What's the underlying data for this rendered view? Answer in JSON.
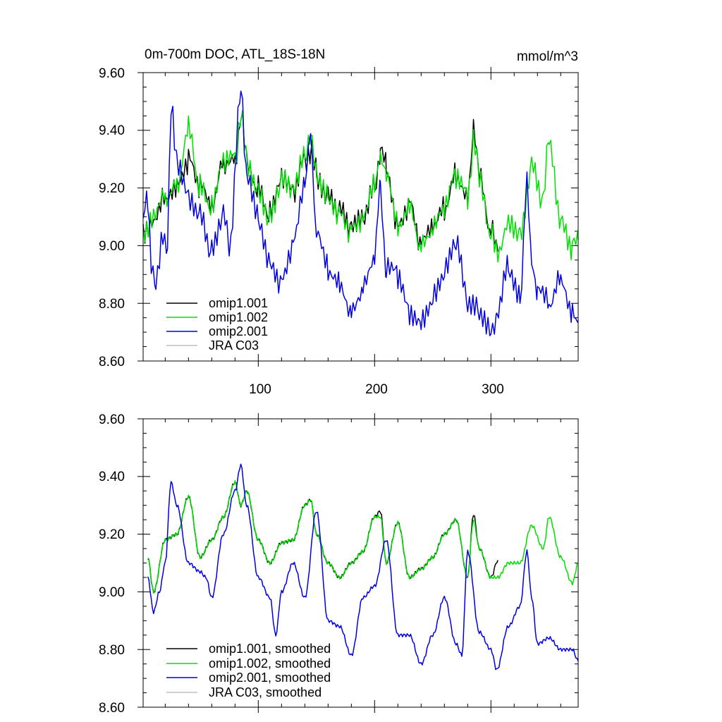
{
  "colors": {
    "omip1_001": "#000000",
    "omip1_002": "#00e000",
    "omip2_001": "#0000e0",
    "jra_c03": "#c0c0c0"
  },
  "chart_data": [
    {
      "type": "line",
      "title": "0m-700m DOC, ATL_18S-18N",
      "units": "mmol/m^3",
      "xlim": [
        1,
        375
      ],
      "ylim": [
        8.6,
        9.6
      ],
      "xticks": [
        100,
        200,
        300
      ],
      "yticks": [
        "8.60",
        "8.80",
        "9.00",
        "9.20",
        "9.40",
        "9.60"
      ],
      "legend_position": "bottom-left",
      "series": [
        {
          "name": "omip1.001",
          "color": "#000000",
          "x": [
            1,
            10,
            20,
            30,
            40,
            50,
            60,
            70,
            80,
            85,
            90,
            100,
            110,
            120,
            130,
            140,
            145,
            150,
            160,
            170,
            180,
            190,
            200,
            205,
            210,
            220,
            230,
            240,
            250,
            260,
            270,
            280,
            285,
            290,
            300,
            306
          ],
          "y": [
            9.06,
            9.1,
            9.18,
            9.22,
            9.3,
            9.2,
            9.12,
            9.28,
            9.3,
            9.45,
            9.3,
            9.2,
            9.1,
            9.22,
            9.18,
            9.3,
            9.33,
            9.25,
            9.18,
            9.12,
            9.05,
            9.08,
            9.2,
            9.32,
            9.28,
            9.08,
            9.15,
            9.0,
            9.05,
            9.12,
            9.25,
            9.18,
            9.4,
            9.25,
            9.05,
            8.98
          ]
        },
        {
          "name": "omip1.002",
          "color": "#00e000",
          "x": [
            1,
            10,
            20,
            30,
            40,
            50,
            60,
            70,
            80,
            85,
            90,
            100,
            110,
            120,
            130,
            140,
            145,
            150,
            160,
            170,
            180,
            190,
            200,
            205,
            210,
            220,
            230,
            240,
            250,
            260,
            270,
            280,
            285,
            290,
            300,
            306,
            315,
            325,
            335,
            345,
            350,
            360,
            370,
            375
          ],
          "y": [
            9.05,
            9.1,
            9.17,
            9.22,
            9.42,
            9.2,
            9.12,
            9.28,
            9.3,
            9.45,
            9.3,
            9.2,
            9.1,
            9.22,
            9.18,
            9.3,
            9.38,
            9.25,
            9.18,
            9.12,
            9.05,
            9.08,
            9.2,
            9.3,
            9.26,
            9.08,
            9.15,
            9.0,
            9.05,
            9.12,
            9.24,
            9.18,
            9.35,
            9.25,
            9.05,
            8.98,
            9.1,
            9.05,
            9.28,
            9.15,
            9.38,
            9.1,
            9.0,
            9.02
          ]
        },
        {
          "name": "omip2.001",
          "color": "#0000e0",
          "x": [
            1,
            5,
            8,
            12,
            18,
            22,
            25,
            30,
            40,
            50,
            60,
            70,
            75,
            85,
            90,
            100,
            110,
            120,
            130,
            140,
            145,
            150,
            160,
            170,
            180,
            190,
            200,
            205,
            210,
            220,
            230,
            240,
            250,
            260,
            270,
            280,
            290,
            300,
            305,
            315,
            325,
            331,
            335,
            340,
            350,
            360,
            370,
            375
          ],
          "y": [
            9.1,
            9.18,
            8.95,
            8.88,
            9.05,
            9.0,
            9.48,
            9.3,
            9.18,
            9.12,
            8.98,
            9.1,
            9.0,
            9.55,
            9.25,
            9.1,
            8.95,
            8.88,
            9.0,
            9.2,
            9.38,
            9.05,
            8.92,
            8.88,
            8.78,
            8.85,
            8.95,
            9.2,
            8.92,
            8.9,
            8.78,
            8.75,
            8.82,
            8.9,
            9.0,
            8.8,
            8.78,
            8.72,
            8.75,
            8.92,
            8.82,
            9.24,
            8.95,
            8.85,
            8.8,
            8.9,
            8.78,
            8.74
          ]
        },
        {
          "name": "JRA C03",
          "color": "#c0c0c0",
          "x": [],
          "y": []
        }
      ]
    },
    {
      "type": "line",
      "title": "",
      "units": "",
      "xlim": [
        1,
        375
      ],
      "ylim": [
        8.6,
        9.6
      ],
      "xticks": [],
      "yticks": [
        "8.60",
        "8.80",
        "9.00",
        "9.20",
        "9.40",
        "9.60"
      ],
      "legend_position": "bottom-left",
      "series": [
        {
          "name": "omip1.001, smoothed",
          "color": "#000000",
          "x": [
            5,
            10,
            20,
            30,
            40,
            50,
            60,
            70,
            80,
            85,
            90,
            100,
            110,
            120,
            130,
            140,
            145,
            150,
            160,
            170,
            180,
            190,
            200,
            205,
            210,
            220,
            230,
            240,
            250,
            260,
            270,
            280,
            285,
            290,
            300,
            306
          ],
          "y": [
            9.12,
            9.0,
            9.18,
            9.2,
            9.33,
            9.12,
            9.18,
            9.26,
            9.38,
            9.3,
            9.35,
            9.18,
            9.1,
            9.17,
            9.18,
            9.3,
            9.32,
            9.2,
            9.1,
            9.05,
            9.1,
            9.14,
            9.26,
            9.28,
            9.1,
            9.24,
            9.05,
            9.08,
            9.12,
            9.2,
            9.25,
            9.05,
            9.27,
            9.15,
            9.05,
            9.11
          ]
        },
        {
          "name": "omip1.002, smoothed",
          "color": "#00e000",
          "x": [
            5,
            10,
            20,
            30,
            40,
            50,
            60,
            70,
            80,
            85,
            90,
            100,
            110,
            120,
            130,
            140,
            145,
            150,
            160,
            170,
            180,
            190,
            200,
            205,
            210,
            220,
            230,
            240,
            250,
            260,
            270,
            280,
            285,
            290,
            300,
            306,
            315,
            325,
            335,
            345,
            350,
            360,
            370,
            375
          ],
          "y": [
            9.12,
            9.0,
            9.18,
            9.2,
            9.33,
            9.12,
            9.18,
            9.26,
            9.38,
            9.3,
            9.35,
            9.18,
            9.1,
            9.17,
            9.18,
            9.3,
            9.32,
            9.2,
            9.1,
            9.05,
            9.1,
            9.14,
            9.26,
            9.26,
            9.1,
            9.24,
            9.05,
            9.08,
            9.12,
            9.2,
            9.25,
            9.05,
            9.25,
            9.15,
            9.05,
            9.05,
            9.1,
            9.1,
            9.23,
            9.15,
            9.26,
            9.12,
            9.03,
            9.1
          ]
        },
        {
          "name": "omip2.001, smoothed",
          "color": "#0000e0",
          "x": [
            5,
            10,
            15,
            20,
            25,
            30,
            40,
            50,
            55,
            60,
            70,
            80,
            85,
            90,
            100,
            110,
            115,
            120,
            130,
            140,
            150,
            160,
            170,
            180,
            190,
            200,
            210,
            220,
            230,
            240,
            250,
            260,
            270,
            275,
            280,
            290,
            300,
            305,
            315,
            325,
            331,
            335,
            340,
            350,
            360,
            370,
            375
          ],
          "y": [
            9.05,
            8.93,
            9.0,
            9.1,
            9.38,
            9.3,
            9.1,
            9.07,
            9.05,
            8.98,
            9.2,
            9.35,
            9.44,
            9.3,
            9.05,
            8.98,
            8.85,
            9.0,
            9.1,
            8.98,
            9.28,
            8.9,
            8.88,
            8.78,
            8.98,
            9.02,
            9.18,
            8.85,
            8.85,
            8.75,
            8.85,
            8.98,
            8.82,
            8.78,
            9.14,
            8.86,
            8.8,
            8.73,
            8.88,
            8.95,
            9.14,
            8.98,
            8.82,
            8.84,
            8.8,
            8.8,
            8.76
          ]
        },
        {
          "name": "JRA C03, smoothed",
          "color": "#c0c0c0",
          "x": [],
          "y": []
        }
      ]
    }
  ]
}
